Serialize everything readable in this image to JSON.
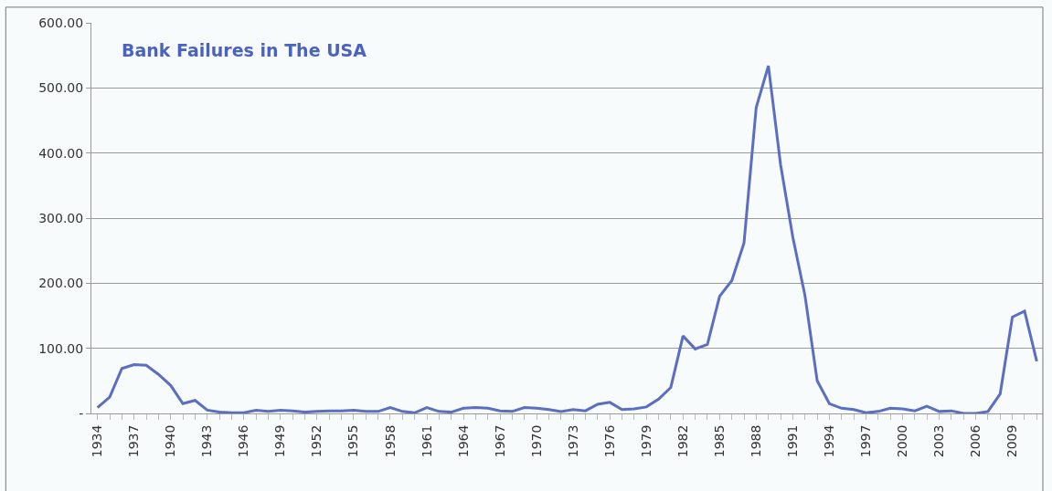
{
  "chart_data": {
    "type": "line",
    "title": "Bank Failures in The USA",
    "categories": [
      "1934",
      null,
      null,
      "1937",
      null,
      null,
      "1940",
      null,
      null,
      "1943",
      null,
      null,
      "1946",
      null,
      null,
      "1949",
      null,
      null,
      "1952",
      null,
      null,
      "1955",
      null,
      null,
      "1958",
      null,
      null,
      "1961",
      null,
      null,
      "1964",
      null,
      null,
      "1967",
      null,
      null,
      "1970",
      null,
      null,
      "1973",
      null,
      null,
      "1976",
      null,
      null,
      "1979",
      null,
      null,
      "1982",
      null,
      null,
      "1985",
      null,
      null,
      "1988",
      null,
      null,
      "1991",
      null,
      null,
      "1994",
      null,
      null,
      "1997",
      null,
      null,
      "2000",
      null,
      null,
      "2003",
      null,
      null,
      "2006",
      null,
      null,
      "2009",
      null,
      null
    ],
    "series": [
      {
        "color": "#5b6ec0",
        "values": [
          9,
          25,
          69,
          75,
          74,
          60,
          43,
          15,
          20,
          5,
          2,
          1,
          1,
          5,
          3,
          5,
          4,
          2,
          3,
          4,
          4,
          5,
          3,
          3,
          9,
          3,
          1,
          9,
          3,
          2,
          8,
          9,
          8,
          4,
          3,
          9,
          8,
          6,
          3,
          6,
          4,
          14,
          17,
          6,
          7,
          10,
          22,
          40,
          119,
          99,
          106,
          180,
          204,
          262,
          470,
          534,
          382,
          271,
          181,
          50,
          15,
          8,
          6,
          1,
          3,
          8,
          7,
          4,
          11,
          3,
          4,
          0,
          0,
          3,
          30,
          148,
          157,
          80
        ]
      }
    ],
    "ylim": [
      0,
      600
    ],
    "yticks": [
      {
        "value": 0,
        "label": "-"
      },
      {
        "value": 100,
        "label": "100.00"
      },
      {
        "value": 200,
        "label": "200.00"
      },
      {
        "value": 300,
        "label": "300.00"
      },
      {
        "value": 400,
        "label": "400.00"
      },
      {
        "value": 500,
        "label": "500.00"
      },
      {
        "value": 600,
        "label": "600.00"
      }
    ],
    "grid": "y",
    "marker": "none",
    "line_style": "solid"
  }
}
